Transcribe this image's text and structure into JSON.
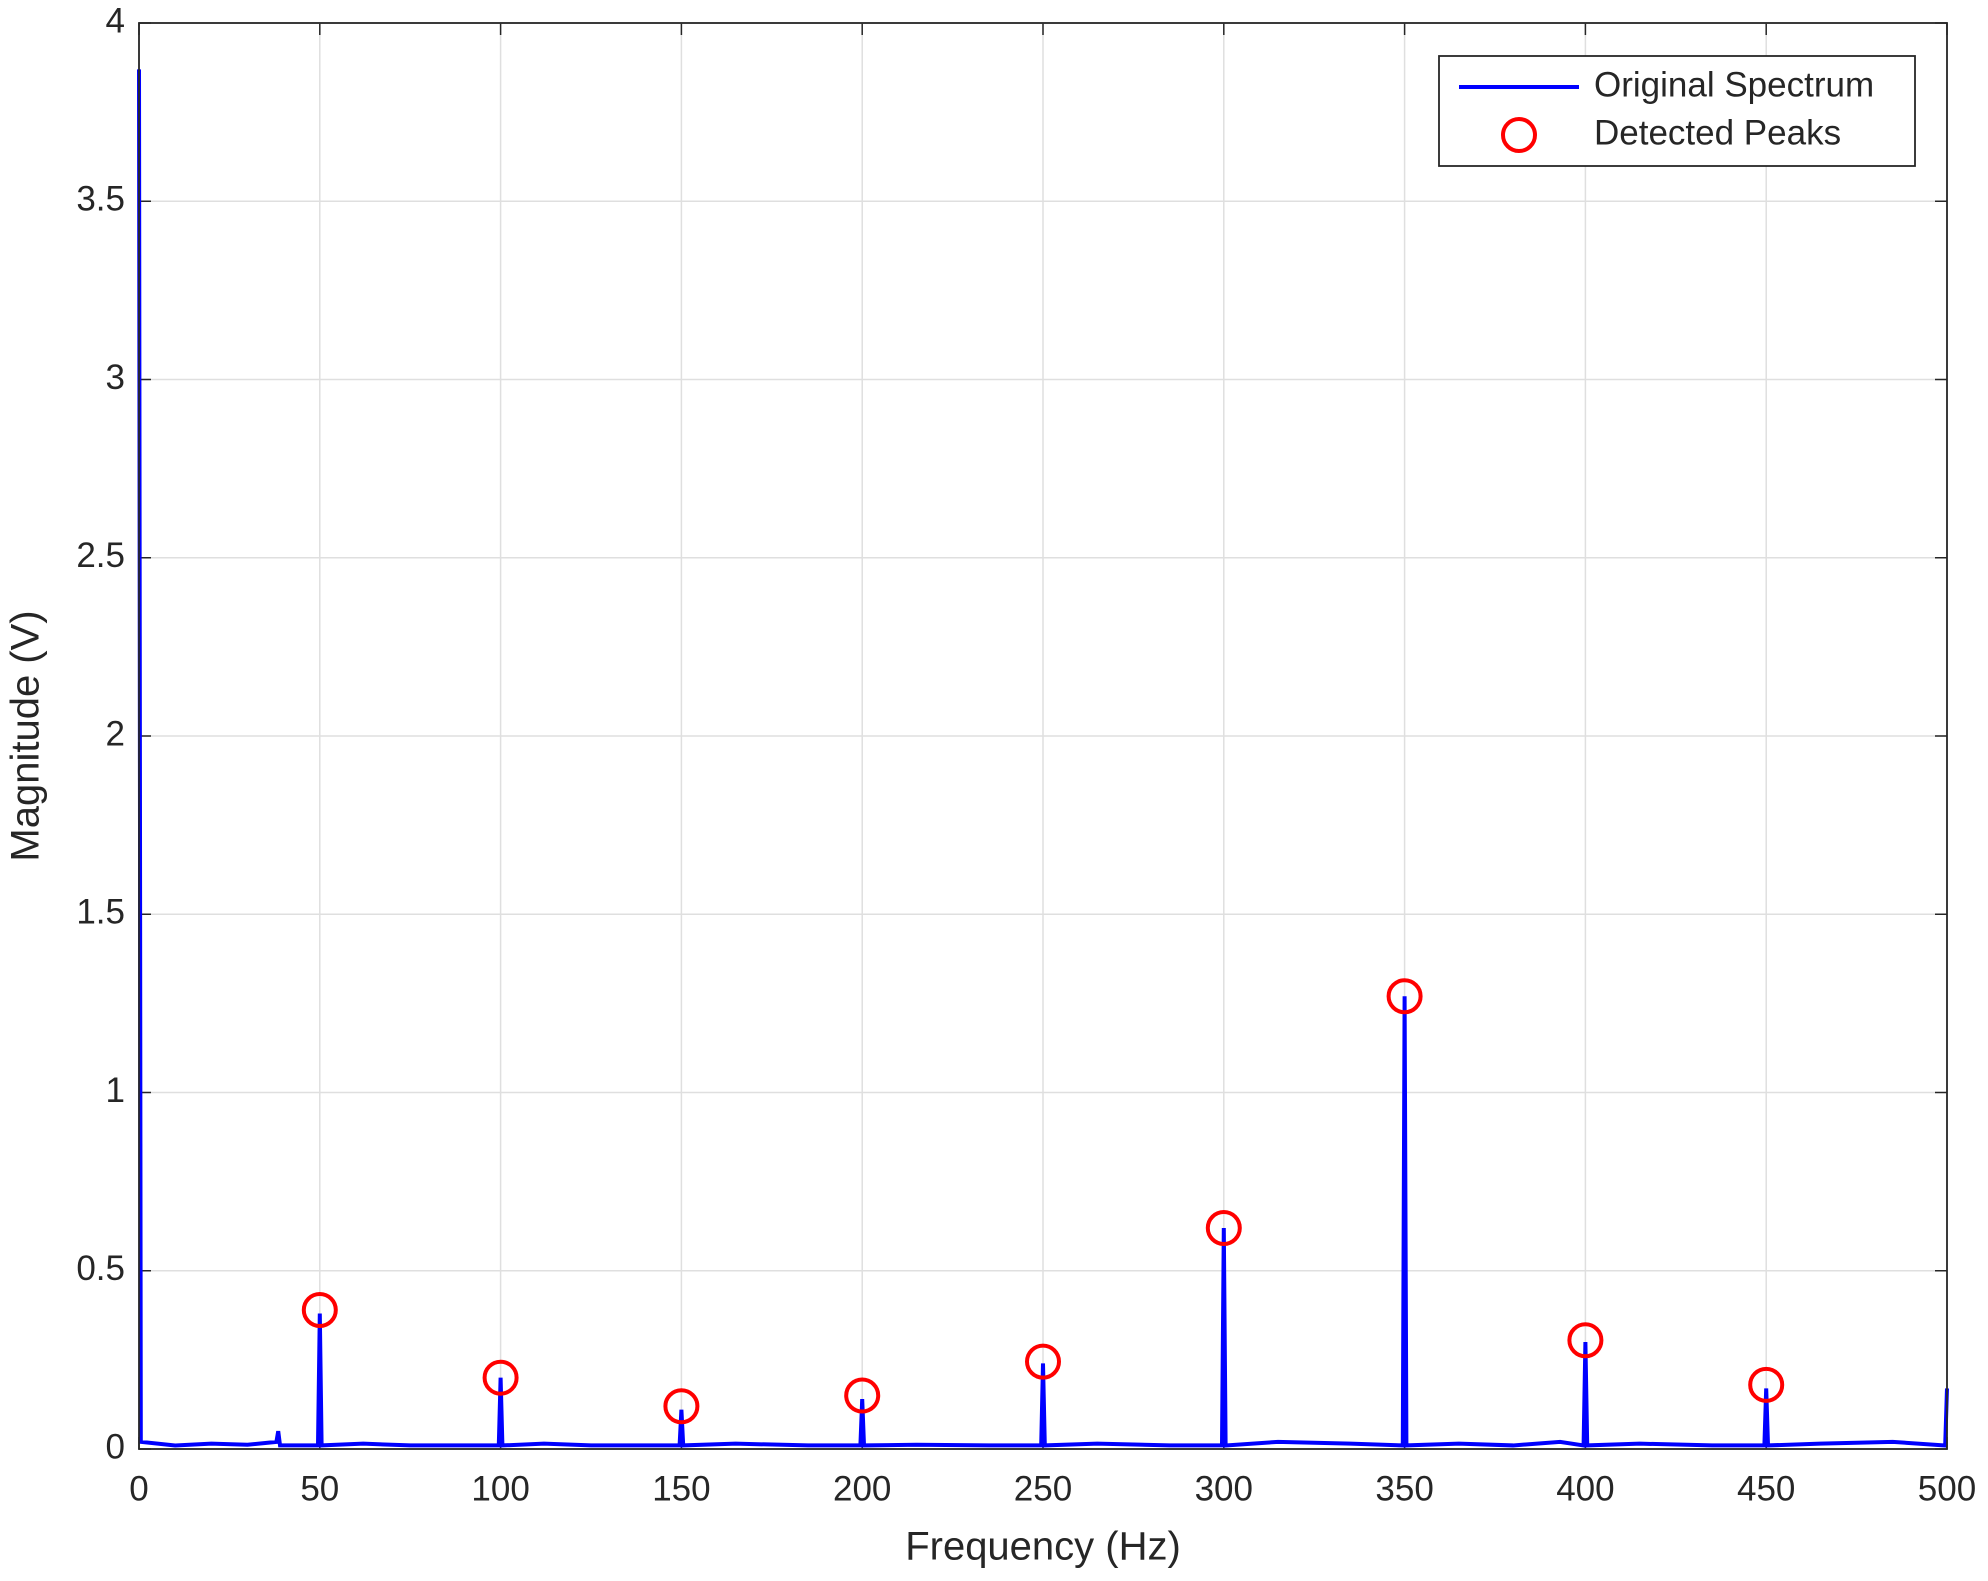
{
  "chart_data": {
    "type": "line",
    "xlabel": "Frequency (Hz)",
    "ylabel": "Magnitude (V)",
    "xlim": [
      0,
      500
    ],
    "ylim": [
      0,
      4
    ],
    "xticks": [
      0,
      50,
      100,
      150,
      200,
      250,
      300,
      350,
      400,
      450,
      500
    ],
    "yticks": [
      0,
      0.5,
      1,
      1.5,
      2,
      2.5,
      3,
      3.5,
      4
    ],
    "grid": true,
    "legend": "northeast",
    "series": [
      {
        "name": "Original Spectrum",
        "color": "#0000ff",
        "type": "line",
        "x": [
          0,
          0.5,
          10,
          20,
          30,
          38,
          38.5,
          39,
          49.5,
          50,
          50.5,
          62,
          75,
          99.5,
          100,
          100.5,
          112,
          125,
          149.5,
          150,
          150.5,
          165,
          185,
          199.5,
          200,
          200.5,
          215,
          235,
          249.5,
          250,
          250.5,
          265,
          285,
          299.5,
          300,
          300.5,
          315,
          335,
          349.5,
          350,
          350.5,
          365,
          380,
          393,
          399.5,
          400,
          400.5,
          415,
          435,
          449.5,
          450,
          450.5,
          465,
          485,
          499.5,
          500
        ],
        "values": [
          3.87,
          0.02,
          0.01,
          0.015,
          0.012,
          0.02,
          0.05,
          0.01,
          0.01,
          0.38,
          0.01,
          0.015,
          0.01,
          0.01,
          0.2,
          0.01,
          0.015,
          0.01,
          0.01,
          0.11,
          0.01,
          0.015,
          0.01,
          0.01,
          0.14,
          0.01,
          0.012,
          0.01,
          0.01,
          0.24,
          0.01,
          0.015,
          0.01,
          0.01,
          0.62,
          0.01,
          0.02,
          0.015,
          0.01,
          1.27,
          0.01,
          0.015,
          0.01,
          0.02,
          0.01,
          0.3,
          0.01,
          0.015,
          0.01,
          0.01,
          0.17,
          0.01,
          0.015,
          0.02,
          0.01,
          0.17
        ]
      },
      {
        "name": "Detected Peaks",
        "color": "#ff0000",
        "type": "scatter",
        "x": [
          50,
          100,
          150,
          200,
          250,
          300,
          350,
          400,
          450
        ],
        "values": [
          0.39,
          0.2,
          0.12,
          0.15,
          0.245,
          0.62,
          1.27,
          0.305,
          0.18
        ]
      }
    ]
  }
}
